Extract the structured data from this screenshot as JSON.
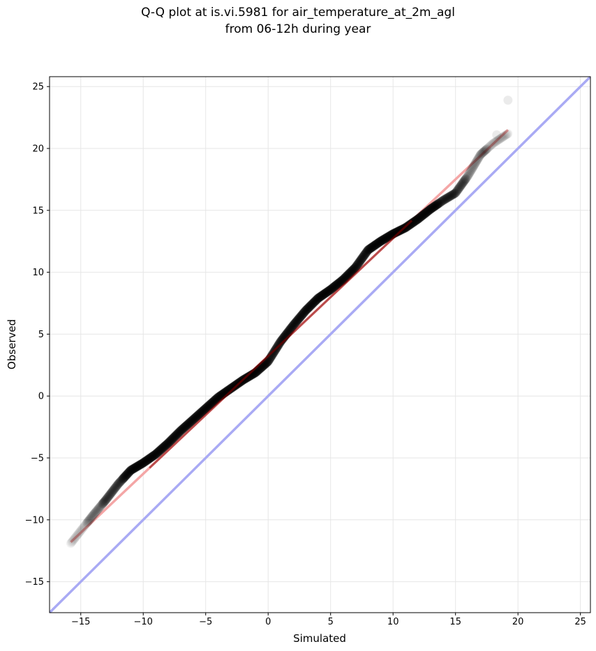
{
  "chart_data": {
    "type": "scatter",
    "title_line1": "Q-Q plot at is.vi.5981 for air_temperature_at_2m_agl",
    "title_line2": "from 06-12h during year",
    "xlabel": "Simulated",
    "ylabel": "Observed",
    "xlim": [
      -17.5,
      25.8
    ],
    "ylim": [
      -17.5,
      25.8
    ],
    "xticks": [
      -15,
      -10,
      -5,
      0,
      5,
      10,
      15,
      20,
      25
    ],
    "yticks": [
      -15,
      -10,
      -5,
      0,
      5,
      10,
      15,
      20,
      25
    ],
    "grid": true,
    "colors": {
      "points": "#000000",
      "fit_line": "#f4a6a6",
      "identity_line": "#a9aaf4",
      "fit_center": "#8b0000"
    },
    "fit_line": {
      "x": [
        -15.8,
        19.2
      ],
      "y": [
        -11.8,
        21.5
      ]
    },
    "identity_line": {
      "x": [
        -17.5,
        25.8
      ],
      "y": [
        -17.5,
        25.8
      ]
    },
    "qq_curve": {
      "x": [
        -15.8,
        -14.0,
        -13.0,
        -12.0,
        -11.0,
        -10.0,
        -9.0,
        -8.0,
        -7.0,
        -6.0,
        -5.0,
        -4.0,
        -3.0,
        -2.0,
        -1.0,
        0.0,
        1.0,
        2.0,
        3.0,
        4.0,
        5.0,
        6.0,
        7.0,
        8.0,
        9.0,
        10.0,
        11.0,
        12.0,
        13.0,
        14.0,
        15.0,
        16.0,
        17.0,
        18.0,
        19.2
      ],
      "y": [
        -11.9,
        -9.6,
        -8.4,
        -7.1,
        -6.0,
        -5.4,
        -4.7,
        -3.8,
        -2.8,
        -1.9,
        -1.0,
        -0.1,
        0.6,
        1.3,
        1.9,
        2.8,
        4.4,
        5.7,
        6.9,
        7.9,
        8.6,
        9.4,
        10.4,
        11.8,
        12.5,
        13.1,
        13.6,
        14.3,
        15.1,
        15.8,
        16.4,
        17.8,
        19.5,
        20.4,
        21.2
      ]
    },
    "outliers": {
      "x": [
        18.3,
        19.2
      ],
      "y": [
        21.1,
        23.9
      ]
    }
  }
}
